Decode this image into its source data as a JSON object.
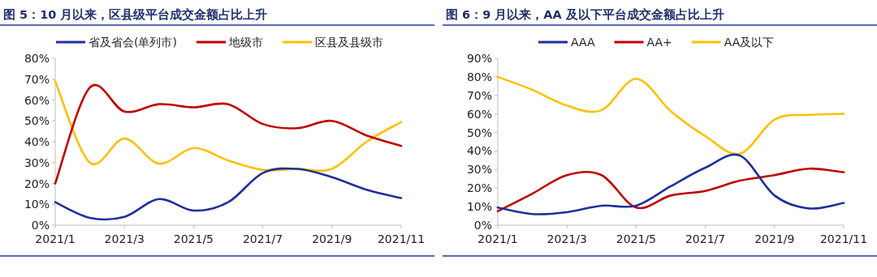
{
  "chart_data": [
    {
      "type": "line",
      "title": "图 5：10 月以来，区县级平台成交金额占比上升",
      "categories": [
        "2021/1",
        null,
        "2021/3",
        null,
        "2021/5",
        null,
        "2021/7",
        null,
        "2021/9",
        null,
        "2021/11"
      ],
      "ylim": [
        0,
        80
      ],
      "yticks": [
        {
          "value": 0,
          "label": "0%"
        },
        {
          "value": 10,
          "label": "10%"
        },
        {
          "value": 20,
          "label": "20%"
        },
        {
          "value": 30,
          "label": "30%"
        },
        {
          "value": 40,
          "label": "40%"
        },
        {
          "value": 50,
          "label": "50%"
        },
        {
          "value": 60,
          "label": "60%"
        },
        {
          "value": 70,
          "label": "70%"
        },
        {
          "value": 80,
          "label": "80%"
        }
      ],
      "legend": "top",
      "series": [
        {
          "name": "省及省会(单列市)",
          "color": "#1f2f98",
          "values": [
            11,
            3.5,
            4,
            12.5,
            7,
            11,
            25,
            27,
            23,
            17,
            13
          ]
        },
        {
          "name": "地级市",
          "color": "#c00000",
          "values": [
            20,
            66,
            54.5,
            58,
            56.5,
            58,
            48.5,
            46.5,
            50,
            43,
            38
          ]
        },
        {
          "name": "区县及县级市",
          "color": "#ffc000",
          "values": [
            69,
            30,
            41.5,
            29.5,
            37,
            31,
            26.5,
            27,
            27,
            40,
            49.5
          ]
        }
      ]
    },
    {
      "type": "line",
      "title": "图 6：9 月以来，AA 及以下平台成交金额占比上升",
      "categories": [
        "2021/1",
        null,
        "2021/3",
        null,
        "2021/5",
        null,
        "2021/7",
        null,
        "2021/9",
        null,
        "2021/11"
      ],
      "ylim": [
        0,
        90
      ],
      "yticks": [
        {
          "value": 0,
          "label": "0%"
        },
        {
          "value": 10,
          "label": "10%"
        },
        {
          "value": 20,
          "label": "20%"
        },
        {
          "value": 30,
          "label": "30%"
        },
        {
          "value": 40,
          "label": "40%"
        },
        {
          "value": 50,
          "label": "50%"
        },
        {
          "value": 60,
          "label": "60%"
        },
        {
          "value": 70,
          "label": "70%"
        },
        {
          "value": 80,
          "label": "80%"
        },
        {
          "value": 90,
          "label": "90%"
        }
      ],
      "legend": "top",
      "series": [
        {
          "name": "AAA",
          "color": "#1f2f98",
          "values": [
            9.5,
            6,
            7,
            10.5,
            10.5,
            21,
            31,
            37.5,
            16,
            9,
            12
          ]
        },
        {
          "name": "AA+",
          "color": "#c00000",
          "values": [
            7.5,
            17,
            27,
            27,
            9.5,
            16,
            18.5,
            24,
            27,
            30.5,
            28.5
          ]
        },
        {
          "name": "AA及以下",
          "color": "#ffc000",
          "values": [
            80,
            73,
            64.5,
            62,
            79,
            61.5,
            48,
            38.5,
            57,
            59.5,
            60
          ]
        }
      ]
    }
  ]
}
